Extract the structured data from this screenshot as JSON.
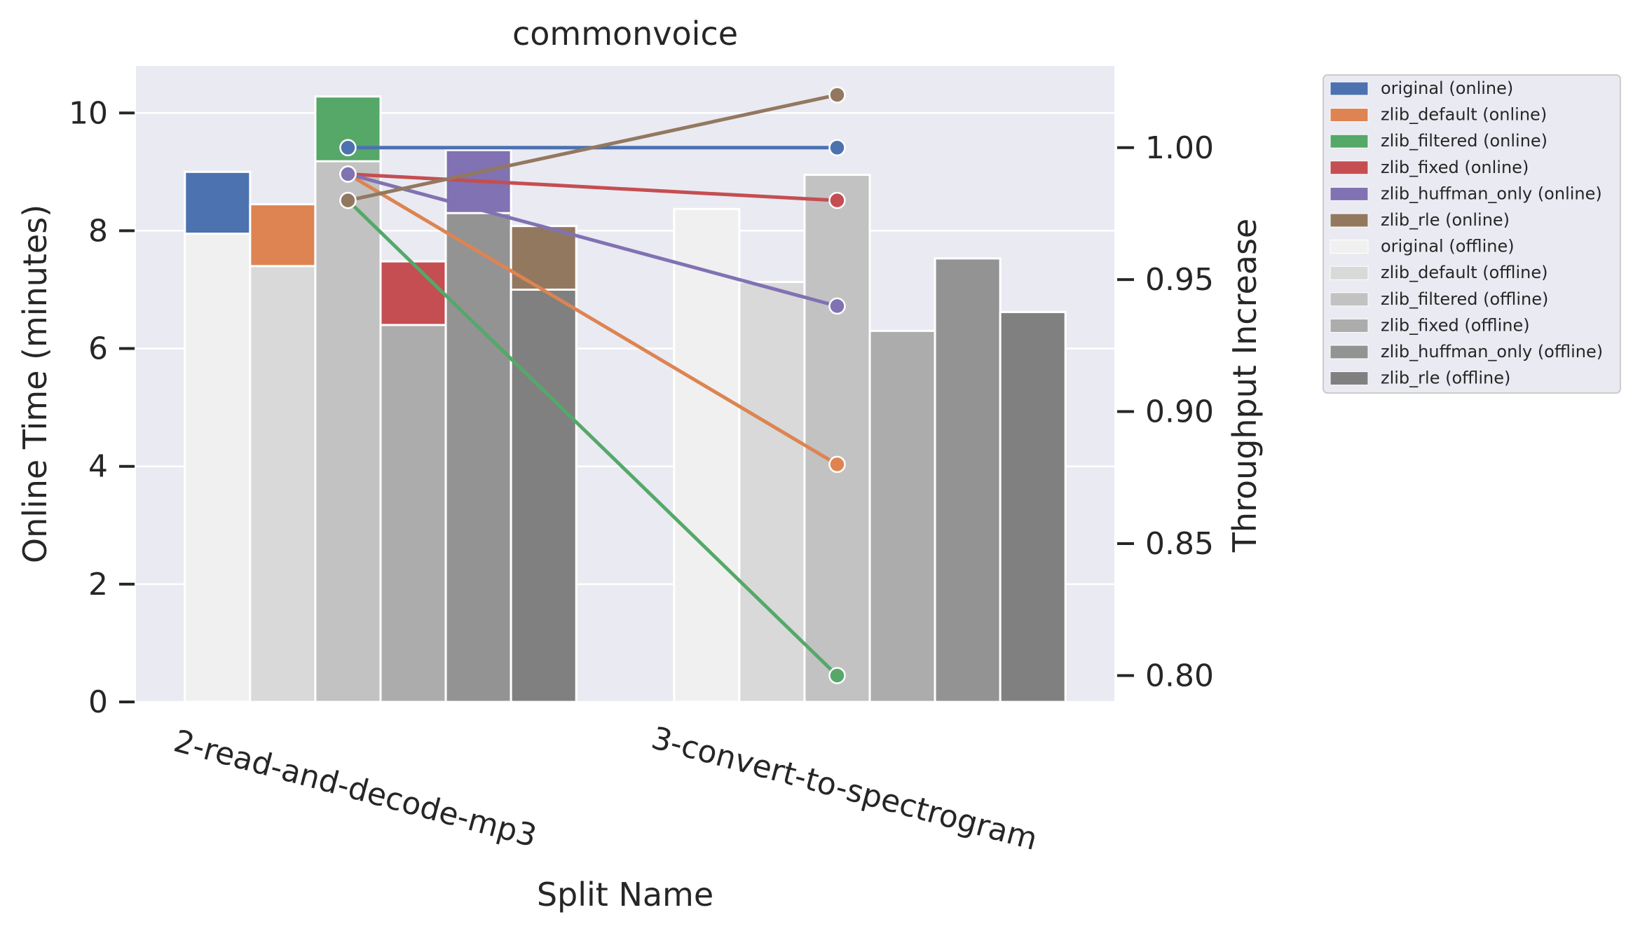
{
  "chart_data": {
    "type": "bar",
    "title": "commonvoice",
    "xlabel": "Split Name",
    "ylabel": "Online Time (minutes)",
    "y2label": "Throughput Increase",
    "categories": [
      "2-read-and-decode-mp3",
      "3-convert-to-spectrogram"
    ],
    "ylim": [
      0,
      10.8
    ],
    "yticks": [
      "0",
      "2",
      "4",
      "6",
      "8",
      "10"
    ],
    "y2lim": [
      0.79,
      1.031
    ],
    "y2ticks": [
      "0.80",
      "0.85",
      "0.90",
      "0.95",
      "1.00"
    ],
    "grid": true,
    "legend_position": "outside-right",
    "bar_series": [
      {
        "name": "original",
        "online": [
          9.0,
          null
        ],
        "offline": [
          7.95,
          8.37
        ],
        "online_color": "#4c72b0",
        "offline_color": "#f0f0f0"
      },
      {
        "name": "zlib_default",
        "online": [
          8.45,
          null
        ],
        "offline": [
          7.4,
          7.13
        ],
        "online_color": "#dd8452",
        "offline_color": "#d9d9d9"
      },
      {
        "name": "zlib_filtered",
        "online": [
          10.28,
          null
        ],
        "offline": [
          9.18,
          8.95
        ],
        "online_color": "#55a868",
        "offline_color": "#c2c2c2"
      },
      {
        "name": "zlib_fixed",
        "online": [
          7.48,
          null
        ],
        "offline": [
          6.4,
          6.3
        ],
        "online_color": "#c44e52",
        "offline_color": "#acacac"
      },
      {
        "name": "zlib_huffman_only",
        "online": [
          9.37,
          null
        ],
        "offline": [
          8.3,
          7.53
        ],
        "online_color": "#8172b3",
        "offline_color": "#939393"
      },
      {
        "name": "zlib_rle",
        "online": [
          8.08,
          null
        ],
        "offline": [
          7.0,
          6.62
        ],
        "online_color": "#937860",
        "offline_color": "#808080"
      }
    ],
    "line_series": [
      {
        "name": "original",
        "values": [
          1.0,
          1.0
        ],
        "color": "#4c72b0"
      },
      {
        "name": "zlib_default",
        "values": [
          0.99,
          0.88
        ],
        "color": "#dd8452"
      },
      {
        "name": "zlib_filtered",
        "values": [
          0.98,
          0.8
        ],
        "color": "#55a868"
      },
      {
        "name": "zlib_fixed",
        "values": [
          0.99,
          0.98
        ],
        "color": "#c44e52"
      },
      {
        "name": "zlib_huffman_only",
        "values": [
          0.99,
          0.94
        ],
        "color": "#8172b3"
      },
      {
        "name": "zlib_rle",
        "values": [
          0.98,
          1.02
        ],
        "color": "#937860"
      }
    ],
    "legend": [
      {
        "label": "original (online)",
        "color": "#4c72b0"
      },
      {
        "label": "zlib_default (online)",
        "color": "#dd8452"
      },
      {
        "label": "zlib_filtered (online)",
        "color": "#55a868"
      },
      {
        "label": "zlib_fixed (online)",
        "color": "#c44e52"
      },
      {
        "label": "zlib_huffman_only (online)",
        "color": "#8172b3"
      },
      {
        "label": "zlib_rle (online)",
        "color": "#937860"
      },
      {
        "label": "original (offline)",
        "color": "#f0f0f0"
      },
      {
        "label": "zlib_default (offline)",
        "color": "#d9d9d9"
      },
      {
        "label": "zlib_filtered (offline)",
        "color": "#c2c2c2"
      },
      {
        "label": "zlib_fixed (offline)",
        "color": "#acacac"
      },
      {
        "label": "zlib_huffman_only (offline)",
        "color": "#939393"
      },
      {
        "label": "zlib_rle (offline)",
        "color": "#808080"
      }
    ]
  }
}
